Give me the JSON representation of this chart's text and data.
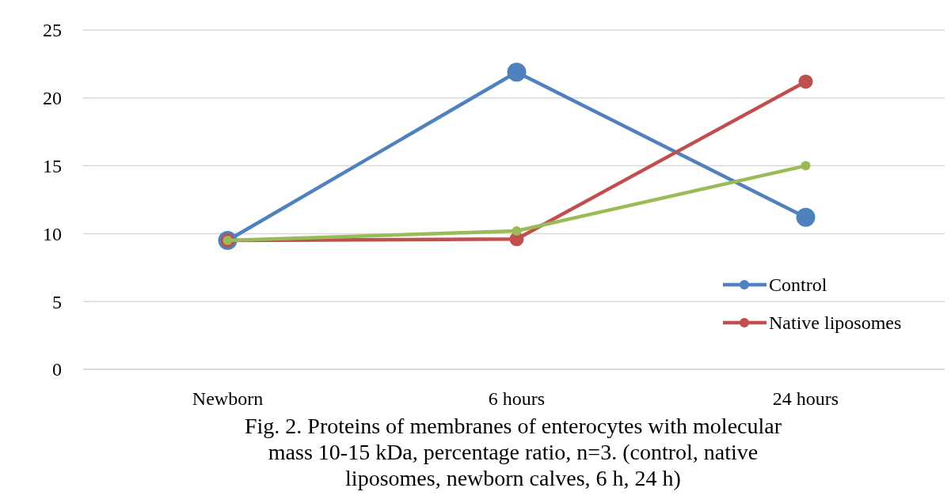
{
  "chart_data": {
    "type": "line",
    "categories": [
      "Newborn",
      "6 hours",
      "24 hours"
    ],
    "series": [
      {
        "name": "Control",
        "color": "#4f81bd",
        "values": [
          9.5,
          21.9,
          11.2
        ]
      },
      {
        "name": "Native liposomes",
        "color": "#c0504d",
        "values": [
          9.5,
          9.6,
          21.2
        ]
      },
      {
        "color": "#9bbb59",
        "values": [
          9.5,
          10.2,
          15.0
        ]
      }
    ],
    "ylim": [
      0,
      25
    ],
    "yticks": [
      0,
      5,
      10,
      15,
      20,
      25
    ],
    "grid": "y",
    "legend": "bottom right",
    "marker": "circle",
    "line_style": "solid",
    "annotations": [
      "Fig. 2. Proteins of  membranes of enterocytes with molecular mass 10-15 kDa, percentage ratio, n=3. (control, native liposomes, newborn calves, 6 h, 24 h)"
    ]
  }
}
